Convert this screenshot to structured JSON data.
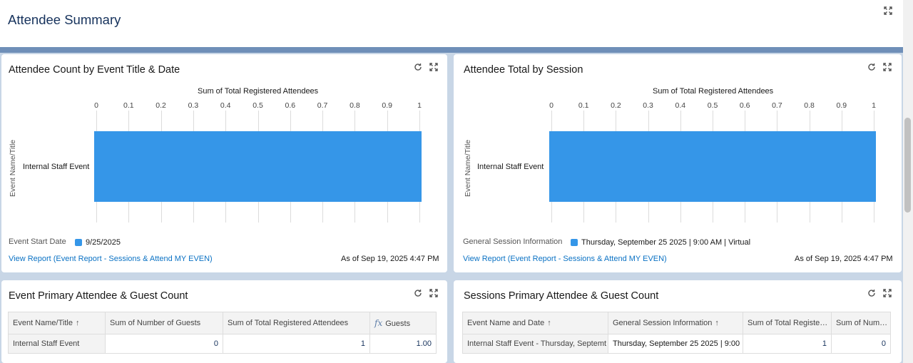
{
  "header": {
    "title": "Attendee Summary"
  },
  "chart1": {
    "title": "Attendee Count by Event Title & Date",
    "legend_label": "Event Start Date",
    "legend_item": "9/25/2025",
    "view_link": "View Report (Event Report - Sessions & Attend MY EVEN)",
    "as_of": "As of Sep 19, 2025 4:47 PM"
  },
  "chart2": {
    "title": "Attendee Total by Session",
    "legend_label": "General Session Information",
    "legend_item": "Thursday, September 25 2025 | 9:00 AM | Virtual",
    "view_link": "View Report (Event Report - Sessions & Attend MY EVEN)",
    "as_of": "As of Sep 19, 2025 4:47 PM"
  },
  "chart_data": [
    {
      "type": "bar",
      "orientation": "horizontal",
      "title": "Sum of Total Registered Attendees",
      "xlabel": "Sum of Total Registered Attendees",
      "ylabel": "Event Name/Title",
      "categories": [
        "Internal Staff Event"
      ],
      "values": [
        1
      ],
      "xlim": [
        0,
        1
      ],
      "ticks": [
        "0",
        "0.1",
        "0.2",
        "0.3",
        "0.4",
        "0.5",
        "0.6",
        "0.7",
        "0.8",
        "0.9",
        "1"
      ],
      "legend": "bottom-left",
      "color": "#3596e8"
    },
    {
      "type": "bar",
      "orientation": "horizontal",
      "title": "Sum of Total Registered Attendees",
      "xlabel": "Sum of Total Registered Attendees",
      "ylabel": "Event Name/Title",
      "categories": [
        "Internal Staff Event"
      ],
      "values": [
        1
      ],
      "xlim": [
        0,
        1
      ],
      "ticks": [
        "0",
        "0.1",
        "0.2",
        "0.3",
        "0.4",
        "0.5",
        "0.6",
        "0.7",
        "0.8",
        "0.9",
        "1"
      ],
      "legend": "bottom-left",
      "color": "#3596e8"
    }
  ],
  "table1": {
    "title": "Event Primary Attendee & Guest Count",
    "headers": [
      "Event Name/Title",
      "Sum of Number of Guests",
      "Sum of Total Registered Attendees",
      "Guests"
    ],
    "rows": [
      [
        "Internal Staff Event",
        "0",
        "1",
        "1.00"
      ]
    ]
  },
  "table2": {
    "title": "Sessions Primary Attendee & Guest Count",
    "headers": [
      "Event Name and Date",
      "General Session Information",
      "Sum of Total Registe…",
      "Sum of Num…"
    ],
    "rows": [
      [
        "Internal Staff Event - Thursday, Septemt",
        "Thursday, September 25 2025 | 9:00 ,",
        "1",
        "0"
      ]
    ]
  },
  "icons": {
    "refresh": "refresh-icon",
    "expand": "expand-icon"
  }
}
